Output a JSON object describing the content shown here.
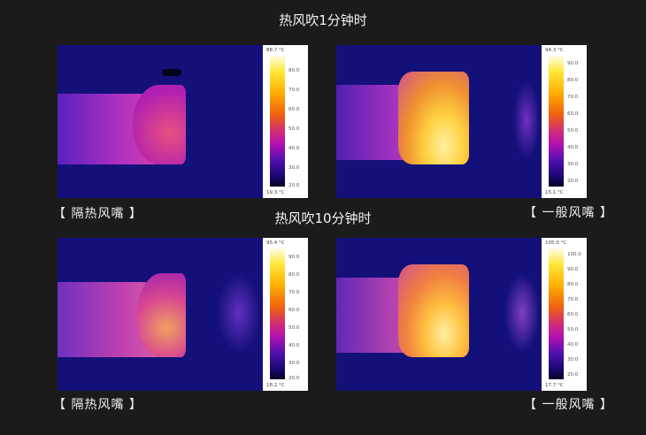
{
  "titles": {
    "one_minute": "热风吹1分钟时",
    "ten_minutes": "热风吹10分钟时"
  },
  "labels": {
    "insulated": "【 隔热风嘴 】",
    "normal": "【 一般风嘴 】"
  },
  "panels": [
    {
      "name": "insulated-1min",
      "max": "88.7 °C",
      "min": "19.3 °C",
      "ticks": [
        "80.0",
        "70.0",
        "60.0",
        "50.0",
        "40.0",
        "30.0",
        "20.0"
      ]
    },
    {
      "name": "normal-1min",
      "max": "94.3 °C",
      "min": "15.1 °C",
      "ticks": [
        "90.0",
        "80.0",
        "70.0",
        "60.0",
        "50.0",
        "40.0",
        "30.0",
        "20.0"
      ]
    },
    {
      "name": "insulated-10min",
      "max": "95.4 °C",
      "min": "18.2 °C",
      "ticks": [
        "90.0",
        "80.0",
        "70.0",
        "60.0",
        "50.0",
        "40.0",
        "30.0",
        "20.0"
      ]
    },
    {
      "name": "normal-10min",
      "max": "105.0 °C",
      "min": "17.7 °C",
      "ticks": [
        "100.0",
        "90.0",
        "80.0",
        "70.0",
        "60.0",
        "50.0",
        "40.0",
        "30.0",
        "20.0"
      ]
    }
  ]
}
